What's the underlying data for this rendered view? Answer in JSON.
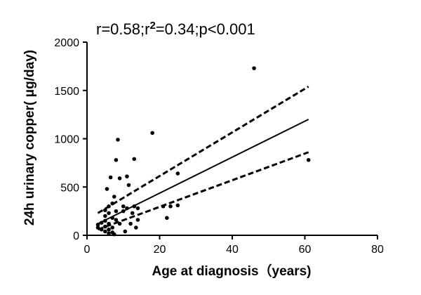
{
  "chart_data": {
    "type": "scatter",
    "title": "",
    "annotation": {
      "prefix": "r=0.58;r",
      "superscript": "2",
      "suffix": "=0.34;p<0.001"
    },
    "xlabel": "Age at diagnosis（years)",
    "ylabel": "24h urinary copper( μg/day)",
    "xlim": [
      0,
      80
    ],
    "ylim": [
      0,
      2000
    ],
    "x_ticks": [
      0,
      20,
      40,
      60,
      80
    ],
    "y_ticks": [
      0,
      500,
      1000,
      1500,
      2000
    ],
    "grid": false,
    "points": [
      {
        "x": 3,
        "y": 80
      },
      {
        "x": 3,
        "y": 110
      },
      {
        "x": 4,
        "y": 130
      },
      {
        "x": 4,
        "y": 60
      },
      {
        "x": 5,
        "y": 40
      },
      {
        "x": 5,
        "y": 90
      },
      {
        "x": 5,
        "y": 150
      },
      {
        "x": 5,
        "y": 200
      },
      {
        "x": 5,
        "y": 260
      },
      {
        "x": 5.5,
        "y": 480
      },
      {
        "x": 6,
        "y": 20
      },
      {
        "x": 6,
        "y": 60
      },
      {
        "x": 6,
        "y": 120
      },
      {
        "x": 6,
        "y": 230
      },
      {
        "x": 6,
        "y": 300
      },
      {
        "x": 6.5,
        "y": 600
      },
      {
        "x": 7,
        "y": 30
      },
      {
        "x": 7,
        "y": 80
      },
      {
        "x": 7,
        "y": 180
      },
      {
        "x": 7,
        "y": 330
      },
      {
        "x": 7.5,
        "y": 10
      },
      {
        "x": 7.5,
        "y": 400
      },
      {
        "x": 8,
        "y": 160
      },
      {
        "x": 8,
        "y": 250
      },
      {
        "x": 8,
        "y": 780
      },
      {
        "x": 8.5,
        "y": 990
      },
      {
        "x": 9,
        "y": 120
      },
      {
        "x": 9,
        "y": 590
      },
      {
        "x": 10,
        "y": 250
      },
      {
        "x": 10,
        "y": 300
      },
      {
        "x": 10.5,
        "y": 40
      },
      {
        "x": 11,
        "y": 610
      },
      {
        "x": 11,
        "y": 280
      },
      {
        "x": 11.5,
        "y": 520
      },
      {
        "x": 12,
        "y": 120
      },
      {
        "x": 12.5,
        "y": 230
      },
      {
        "x": 13,
        "y": 790
      },
      {
        "x": 13,
        "y": 300
      },
      {
        "x": 13.5,
        "y": 80
      },
      {
        "x": 14,
        "y": 160
      },
      {
        "x": 14,
        "y": 280
      },
      {
        "x": 18,
        "y": 1060
      },
      {
        "x": 21,
        "y": 300
      },
      {
        "x": 22,
        "y": 180
      },
      {
        "x": 23,
        "y": 300
      },
      {
        "x": 25,
        "y": 640
      },
      {
        "x": 25,
        "y": 310
      },
      {
        "x": 46,
        "y": 1730
      },
      {
        "x": 61,
        "y": 780
      }
    ],
    "regression": {
      "x": [
        3,
        61
      ],
      "y": [
        120,
        1200
      ]
    },
    "ci_upper": {
      "x": [
        3,
        61
      ],
      "y": [
        230,
        1540
      ]
    },
    "ci_lower": {
      "x": [
        3,
        61
      ],
      "y": [
        60,
        860
      ]
    }
  }
}
